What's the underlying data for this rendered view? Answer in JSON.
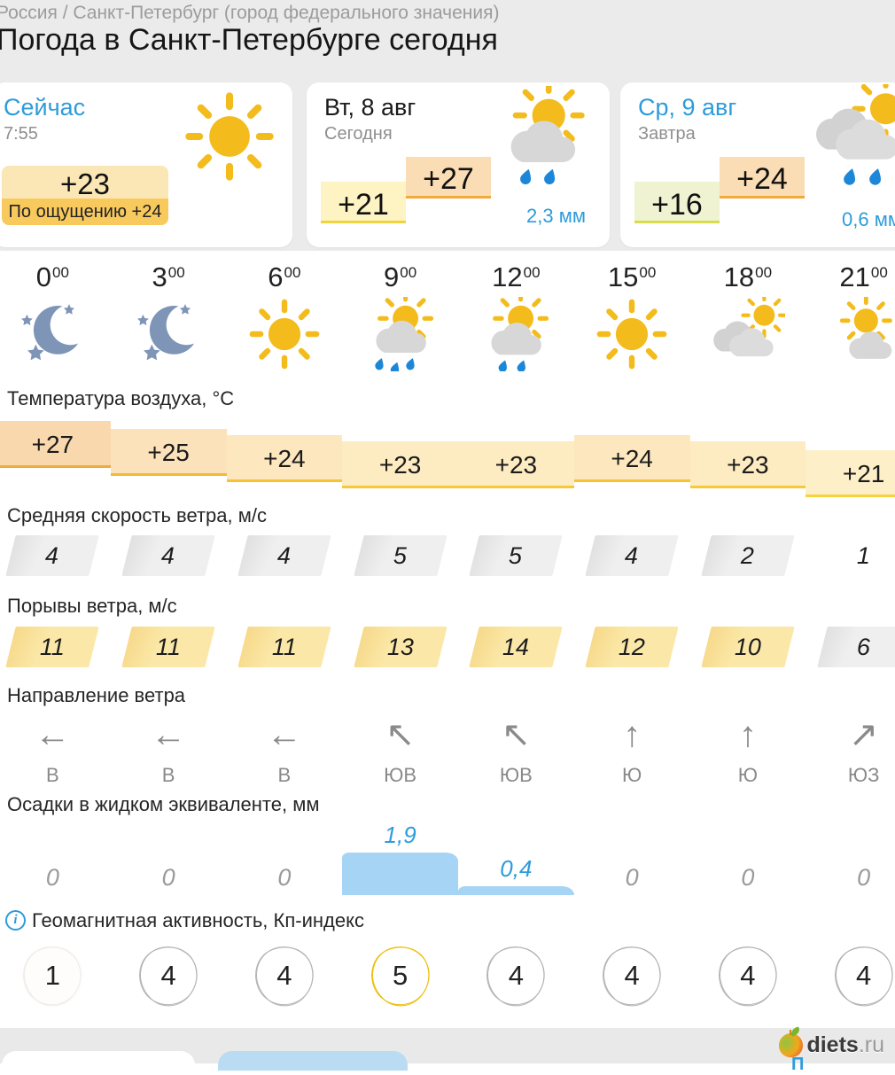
{
  "breadcrumb": "Россия / Санкт-Петербург (город федерального значения)",
  "title": "Погода в Санкт-Петербурге сегодня",
  "colors": {
    "accent_blue": "#2d9cdb",
    "sun_yellow": "#f3bc1c",
    "cloud_gray": "#d7d7d7",
    "rain_blue": "#1c86d8",
    "moon_blue": "#7e95b7",
    "precip_bar": "#a6d4f4",
    "kp_gold": "#ebbe07",
    "header_bg": "#ebebeb"
  },
  "cards": {
    "now": {
      "label": "Сейчас",
      "time": "7:55",
      "temp": "+23",
      "feels": "По ощущению +24",
      "icon": "sun-icon"
    },
    "today": {
      "label": "Вт, 8 авг",
      "sub": "Сегодня",
      "low": "+21",
      "high": "+27",
      "precip": "2,3 мм",
      "icon": "sun-rain-2-icon"
    },
    "tomorrow": {
      "label": "Ср, 9 авг",
      "sub": "Завтра",
      "low": "+16",
      "high": "+24",
      "precip": "0,6 мм",
      "icon": "clouds-sun-rain-icon"
    }
  },
  "hours": [
    {
      "h": "0",
      "m": "00",
      "icon": "moon-stars-icon"
    },
    {
      "h": "3",
      "m": "00",
      "icon": "moon-stars-icon"
    },
    {
      "h": "6",
      "m": "00",
      "icon": "sun-icon"
    },
    {
      "h": "9",
      "m": "00",
      "icon": "sun-rain-3-icon"
    },
    {
      "h": "12",
      "m": "00",
      "icon": "sun-rain-2-icon"
    },
    {
      "h": "15",
      "m": "00",
      "icon": "sun-icon"
    },
    {
      "h": "18",
      "m": "00",
      "icon": "clouds-sun-icon"
    },
    {
      "h": "21",
      "m": "00",
      "icon": "sun-cloud-icon"
    }
  ],
  "sections": {
    "temperature": {
      "label": "Температура воздуха, °C",
      "items": [
        {
          "label": "+27",
          "value": 27,
          "bg": "#f9d8ae",
          "border": "#f0ab38"
        },
        {
          "label": "+25",
          "value": 25,
          "bg": "#fbe2ba",
          "border": "#f3bb33"
        },
        {
          "label": "+24",
          "value": 24,
          "bg": "#fce7be",
          "border": "#f4c431"
        },
        {
          "label": "+23",
          "value": 23,
          "bg": "#fdebc2",
          "border": "#f5c93a"
        },
        {
          "label": "+23",
          "value": 23,
          "bg": "#fdebc2",
          "border": "#f5c93a"
        },
        {
          "label": "+24",
          "value": 24,
          "bg": "#fce7be",
          "border": "#f4c431"
        },
        {
          "label": "+23",
          "value": 23,
          "bg": "#fdebc2",
          "border": "#f5c93a"
        },
        {
          "label": "+21",
          "value": 21,
          "bg": "#fdefc8",
          "border": "#f6d23c"
        }
      ]
    },
    "wind": {
      "label": "Средняя скорость ветра, м/с",
      "items": [
        {
          "value": "4",
          "style": "gray"
        },
        {
          "value": "4",
          "style": "gray"
        },
        {
          "value": "4",
          "style": "gray"
        },
        {
          "value": "5",
          "style": "gray"
        },
        {
          "value": "5",
          "style": "gray"
        },
        {
          "value": "4",
          "style": "gray"
        },
        {
          "value": "2",
          "style": "gray"
        },
        {
          "value": "1",
          "style": "none"
        }
      ]
    },
    "gusts": {
      "label": "Порывы ветра, м/с",
      "items": [
        {
          "value": "11",
          "style": "yellow"
        },
        {
          "value": "11",
          "style": "yellow"
        },
        {
          "value": "11",
          "style": "yellow"
        },
        {
          "value": "13",
          "style": "yellow"
        },
        {
          "value": "14",
          "style": "yellow"
        },
        {
          "value": "12",
          "style": "yellow"
        },
        {
          "value": "10",
          "style": "yellow"
        },
        {
          "value": "6",
          "style": "gray"
        }
      ]
    },
    "direction": {
      "label": "Направление ветра",
      "items": [
        {
          "arrow": "←",
          "label": "В"
        },
        {
          "arrow": "←",
          "label": "В"
        },
        {
          "arrow": "←",
          "label": "В"
        },
        {
          "arrow": "↖",
          "label": "ЮВ"
        },
        {
          "arrow": "↖",
          "label": "ЮВ"
        },
        {
          "arrow": "↑",
          "label": "Ю"
        },
        {
          "arrow": "↑",
          "label": "Ю"
        },
        {
          "arrow": "↗",
          "label": "ЮЗ"
        }
      ]
    },
    "precipitation": {
      "label": "Осадки в жидком эквиваленте, мм",
      "items": [
        {
          "value": "0",
          "mm": 0
        },
        {
          "value": "0",
          "mm": 0
        },
        {
          "value": "0",
          "mm": 0
        },
        {
          "value": "1,9",
          "mm": 1.9
        },
        {
          "value": "0,4",
          "mm": 0.4
        },
        {
          "value": "0",
          "mm": 0
        },
        {
          "value": "0",
          "mm": 0
        },
        {
          "value": "0",
          "mm": 0
        }
      ]
    },
    "geomagnetic": {
      "label": "Геомагнитная активность, Кп-индекс",
      "info_icon": "i",
      "items": [
        {
          "value": "1",
          "style": "faint"
        },
        {
          "value": "4",
          "style": "gray"
        },
        {
          "value": "4",
          "style": "gray"
        },
        {
          "value": "5",
          "style": "gold"
        },
        {
          "value": "4",
          "style": "gray"
        },
        {
          "value": "4",
          "style": "gray"
        },
        {
          "value": "4",
          "style": "gray"
        },
        {
          "value": "4",
          "style": "gray"
        }
      ]
    }
  },
  "footer": {
    "logo_name": "diets",
    "logo_tld": ".ru",
    "button_fragment": "П"
  }
}
